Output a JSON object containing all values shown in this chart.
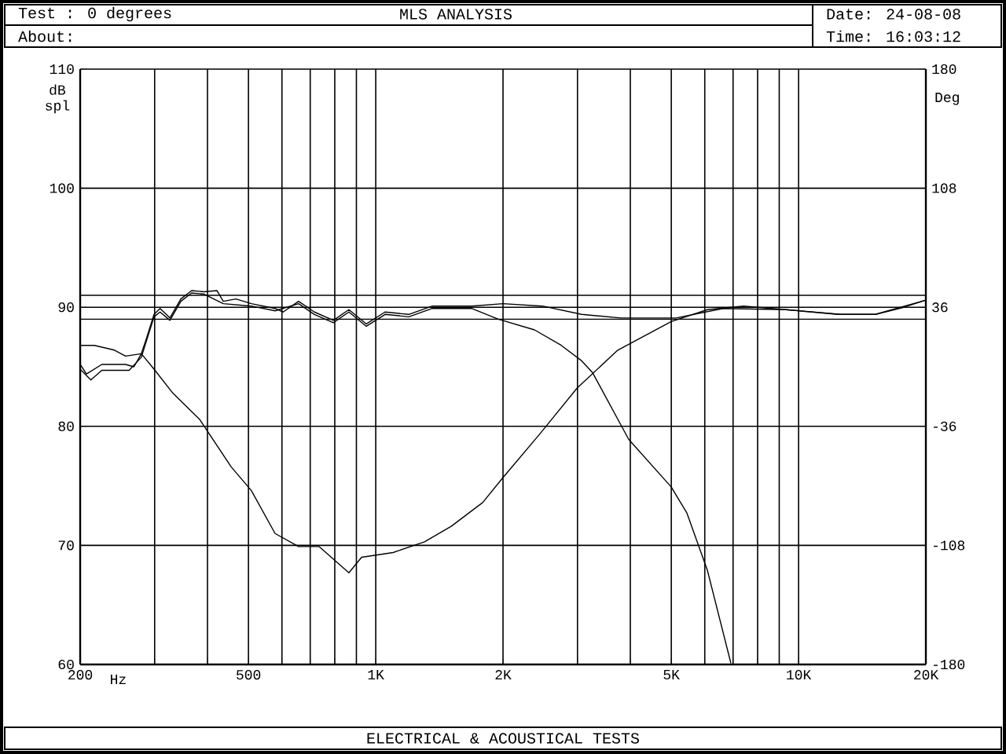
{
  "chart_data": {
    "type": "line",
    "title": "MLS ANALYSIS",
    "annotations": [
      "Test : 0 degrees",
      "About:",
      "Date: 24-08-08",
      "Time: 16:03:12",
      "ELECTRICAL & ACOUSTICAL TESTS"
    ],
    "xlabel": "Hz",
    "ylabel": "dB spl",
    "y2label": "Deg",
    "log": "x",
    "grid": true,
    "marker": "none",
    "xlim": [
      200,
      20000
    ],
    "ylim": [
      60,
      110
    ],
    "y2lim": [
      -180,
      180
    ],
    "xticks": [
      200,
      {
        "value": 300,
        "label": null
      },
      {
        "value": 400,
        "label": null
      },
      500,
      {
        "value": 600,
        "label": null
      },
      {
        "value": 700,
        "label": null
      },
      {
        "value": 800,
        "label": null
      },
      {
        "value": 900,
        "label": null
      },
      {
        "value": 1000,
        "label": "1K"
      },
      {
        "value": 2000,
        "label": "2K"
      },
      {
        "value": 3000,
        "label": null
      },
      {
        "value": 4000,
        "label": null
      },
      {
        "value": 5000,
        "label": "5K"
      },
      {
        "value": 6000,
        "label": null
      },
      {
        "value": 7000,
        "label": null
      },
      {
        "value": 8000,
        "label": null
      },
      {
        "value": 9000,
        "label": null
      },
      {
        "value": 10000,
        "label": "10K"
      },
      {
        "value": 20000,
        "label": "20K"
      }
    ],
    "yticks": [
      60,
      70,
      80,
      90,
      100,
      110
    ],
    "y2ticks": [
      -180,
      -108,
      -36,
      36,
      108,
      180
    ],
    "ref_lines": [
      {
        "axis": "y",
        "value": 91,
        "color": "#000000"
      },
      {
        "axis": "y",
        "value": 89,
        "color": "#000000"
      }
    ],
    "series": [
      {
        "color": "#000000",
        "x": [
          200,
          207,
          225,
          256,
          268,
          279,
          287,
          299,
          309,
          326,
          346,
          367,
          393,
          421,
          436,
          467,
          508,
          578,
          604,
          657,
          716,
          794,
          864,
          950,
          1052,
          1197,
          1361,
          1685,
          2000,
          2478,
          3069,
          3800,
          5129,
          6631,
          9338,
          12600,
          15200,
          17740,
          20000
        ],
        "values": [
          85.2,
          84.4,
          85.2,
          85.2,
          85.0,
          86.1,
          87.4,
          89.4,
          89.9,
          89.1,
          90.7,
          91.4,
          91.3,
          91.4,
          90.5,
          90.7,
          90.3,
          89.9,
          89.6,
          90.5,
          89.6,
          88.9,
          89.8,
          88.6,
          89.6,
          89.4,
          90.1,
          90.1,
          90.3,
          90.1,
          89.4,
          89.1,
          89.1,
          89.9,
          89.8,
          89.4,
          89.4,
          90.0,
          90.6
        ]
      },
      {
        "color": "#000000",
        "x": [
          200,
          212,
          225,
          261,
          279,
          299,
          309,
          326,
          346,
          367,
          393,
          436,
          508,
          578,
          657,
          716,
          794,
          864,
          950,
          1052,
          1197,
          1361,
          1685,
          1949,
          2374,
          2746,
          3069,
          3258,
          3966,
          5000,
          5446,
          6087,
          6918
        ],
        "values": [
          84.8,
          83.9,
          84.7,
          84.7,
          85.8,
          89.2,
          89.6,
          88.9,
          90.5,
          91.2,
          91.1,
          90.3,
          90.1,
          89.7,
          90.3,
          89.4,
          88.7,
          89.6,
          88.4,
          89.4,
          89.2,
          89.9,
          89.9,
          89.0,
          88.1,
          86.8,
          85.5,
          84.5,
          78.9,
          74.9,
          72.7,
          67.9,
          60.1
        ]
      },
      {
        "color": "#000000",
        "x": [
          200,
          216,
          241,
          256,
          279,
          299,
          331,
          383,
          455,
          508,
          578,
          657,
          735,
          864,
          926,
          1099,
          1304,
          1508,
          1790,
          2000,
          2436,
          2992,
          3736,
          5000,
          6087,
          7412,
          9338,
          12380,
          15200,
          20000
        ],
        "values": [
          86.8,
          86.8,
          86.4,
          85.9,
          86.1,
          84.8,
          82.8,
          80.6,
          76.6,
          74.6,
          71.0,
          69.9,
          69.9,
          67.7,
          69.0,
          69.4,
          70.3,
          71.6,
          73.6,
          75.7,
          79.3,
          83.2,
          86.4,
          88.8,
          89.8,
          90.1,
          89.8,
          89.4,
          89.4,
          90.6
        ]
      }
    ]
  }
}
